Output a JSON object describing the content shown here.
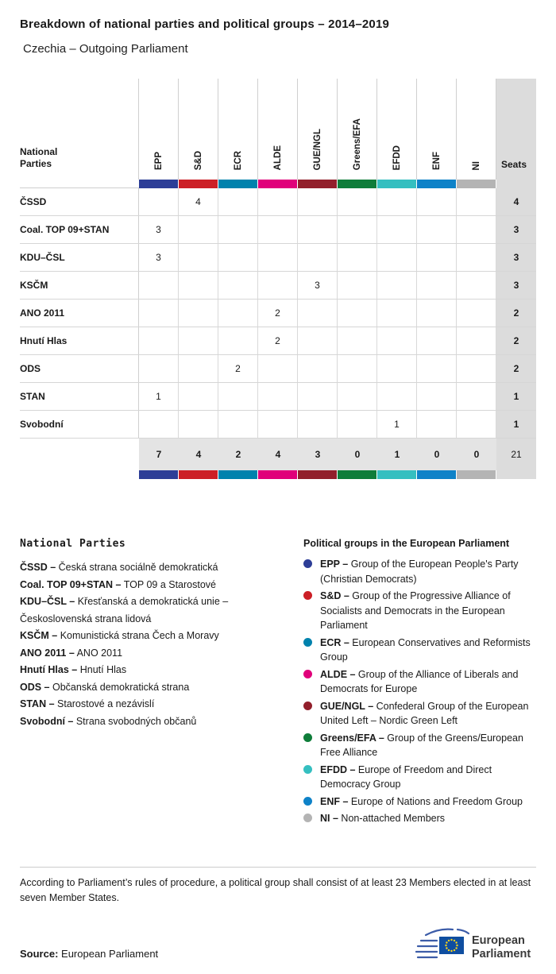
{
  "header": {
    "title": "Breakdown of national parties and political groups – 2014–2019",
    "subtitle": "Czechia – Outgoing Parliament"
  },
  "table": {
    "row_header": [
      "National",
      "Parties"
    ],
    "seats_label": "Seats",
    "groups": [
      {
        "label": "EPP",
        "color": "#2d3e97"
      },
      {
        "label": "S&D",
        "color": "#cc1f26"
      },
      {
        "label": "ECR",
        "color": "#0082ad"
      },
      {
        "label": "ALDE",
        "color": "#e0007a"
      },
      {
        "label": "GUE/NGL",
        "color": "#921f2b"
      },
      {
        "label": "Greens/EFA",
        "color": "#0f7d3a"
      },
      {
        "label": "EFDD",
        "color": "#35bfc0"
      },
      {
        "label": "ENF",
        "color": "#0e82c8"
      },
      {
        "label": "NI",
        "color": "#b4b4b4"
      }
    ],
    "rows": [
      {
        "party": "ČSSD",
        "values": [
          "",
          "4",
          "",
          "",
          "",
          "",
          "",
          "",
          ""
        ],
        "seats": "4"
      },
      {
        "party": "Coal. TOP 09+STAN",
        "values": [
          "3",
          "",
          "",
          "",
          "",
          "",
          "",
          "",
          ""
        ],
        "seats": "3"
      },
      {
        "party": "KDU–ČSL",
        "values": [
          "3",
          "",
          "",
          "",
          "",
          "",
          "",
          "",
          ""
        ],
        "seats": "3"
      },
      {
        "party": "KSČM",
        "values": [
          "",
          "",
          "",
          "",
          "3",
          "",
          "",
          "",
          ""
        ],
        "seats": "3"
      },
      {
        "party": "ANO 2011",
        "values": [
          "",
          "",
          "",
          "2",
          "",
          "",
          "",
          "",
          ""
        ],
        "seats": "2"
      },
      {
        "party": "Hnutí Hlas",
        "values": [
          "",
          "",
          "",
          "2",
          "",
          "",
          "",
          "",
          ""
        ],
        "seats": "2"
      },
      {
        "party": "ODS",
        "values": [
          "",
          "",
          "2",
          "",
          "",
          "",
          "",
          "",
          ""
        ],
        "seats": "2"
      },
      {
        "party": "STAN",
        "values": [
          "1",
          "",
          "",
          "",
          "",
          "",
          "",
          "",
          ""
        ],
        "seats": "1"
      },
      {
        "party": "Svobodní",
        "values": [
          "",
          "",
          "",
          "",
          "",
          "",
          "1",
          "",
          ""
        ],
        "seats": "1"
      }
    ],
    "totals": {
      "values": [
        "7",
        "4",
        "2",
        "4",
        "3",
        "0",
        "1",
        "0",
        "0"
      ],
      "seats": "21"
    }
  },
  "legend_left": {
    "title": "National Parties",
    "items": [
      {
        "abbr": "ČSSD –",
        "name": "Česká strana sociálně demokratická"
      },
      {
        "abbr": "Coal. TOP 09+STAN –",
        "name": "TOP 09 a Starostové"
      },
      {
        "abbr": "KDU–ČSL –",
        "name": "Křesťanská a demokratická unie – Československá strana lidová"
      },
      {
        "abbr": "KSČM –",
        "name": "Komunistická strana Čech a Moravy"
      },
      {
        "abbr": "ANO 2011 –",
        "name": "ANO 2011"
      },
      {
        "abbr": "Hnutí Hlas –",
        "name": "Hnutí Hlas"
      },
      {
        "abbr": "ODS –",
        "name": "Občanská demokratická strana"
      },
      {
        "abbr": "STAN –",
        "name": "Starostové a nezávislí"
      },
      {
        "abbr": "Svobodní –",
        "name": "Strana svobodných občanů"
      }
    ]
  },
  "legend_right": {
    "title": "Political groups in the European Parliament",
    "items": [
      {
        "abbr": "EPP –",
        "name": "Group of the European People's Party (Christian Democrats)",
        "color": "#2d3e97"
      },
      {
        "abbr": "S&D –",
        "name": "Group of the Progressive Alliance of Socialists and Democrats in the European Parliament",
        "color": "#cc1f26"
      },
      {
        "abbr": "ECR –",
        "name": "European Conservatives and Reformists Group",
        "color": "#0082ad"
      },
      {
        "abbr": "ALDE –",
        "name": "Group of the Alliance of Liberals and Democrats for Europe",
        "color": "#e0007a"
      },
      {
        "abbr": "GUE/NGL –",
        "name": "Confederal Group of the European United Left – Nordic Green Left",
        "color": "#921f2b"
      },
      {
        "abbr": "Greens/EFA –",
        "name": "Group of the Greens/European Free Alliance",
        "color": "#0f7d3a"
      },
      {
        "abbr": "EFDD –",
        "name": "Europe of Freedom and Direct Democracy Group",
        "color": "#35bfc0"
      },
      {
        "abbr": "ENF –",
        "name": "Europe of Nations and Freedom Group",
        "color": "#0e82c8"
      },
      {
        "abbr": "NI –",
        "name": "Non-attached Members",
        "color": "#b4b4b4"
      }
    ]
  },
  "footer": {
    "note": "According to Parliament’s rules of procedure, a political group shall consist of at least 23 Members elected in at least seven Member States.",
    "source_label": "Source:",
    "source_value": "European Parliament",
    "logo": {
      "line1": "European",
      "line2": "Parliament"
    }
  },
  "chart_data": {
    "type": "table",
    "title": "Breakdown of national parties and political groups – 2014–2019",
    "subtitle": "Czechia – Outgoing Parliament",
    "columns": [
      "EPP",
      "S&D",
      "ECR",
      "ALDE",
      "GUE/NGL",
      "Greens/EFA",
      "EFDD",
      "ENF",
      "NI",
      "Seats"
    ],
    "rows": [
      [
        "ČSSD",
        0,
        4,
        0,
        0,
        0,
        0,
        0,
        0,
        0,
        4
      ],
      [
        "Coal. TOP 09+STAN",
        3,
        0,
        0,
        0,
        0,
        0,
        0,
        0,
        0,
        3
      ],
      [
        "KDU–ČSL",
        3,
        0,
        0,
        0,
        0,
        0,
        0,
        0,
        0,
        3
      ],
      [
        "KSČM",
        0,
        0,
        0,
        0,
        3,
        0,
        0,
        0,
        0,
        3
      ],
      [
        "ANO 2011",
        0,
        0,
        0,
        2,
        0,
        0,
        0,
        0,
        0,
        2
      ],
      [
        "Hnutí Hlas",
        0,
        0,
        0,
        2,
        0,
        0,
        0,
        0,
        0,
        2
      ],
      [
        "ODS",
        0,
        0,
        2,
        0,
        0,
        0,
        0,
        0,
        0,
        2
      ],
      [
        "STAN",
        1,
        0,
        0,
        0,
        0,
        0,
        0,
        0,
        0,
        1
      ],
      [
        "Svobodní",
        0,
        0,
        0,
        0,
        0,
        0,
        1,
        0,
        0,
        1
      ]
    ],
    "totals": [
      7,
      4,
      2,
      4,
      3,
      0,
      1,
      0,
      0,
      21
    ]
  }
}
